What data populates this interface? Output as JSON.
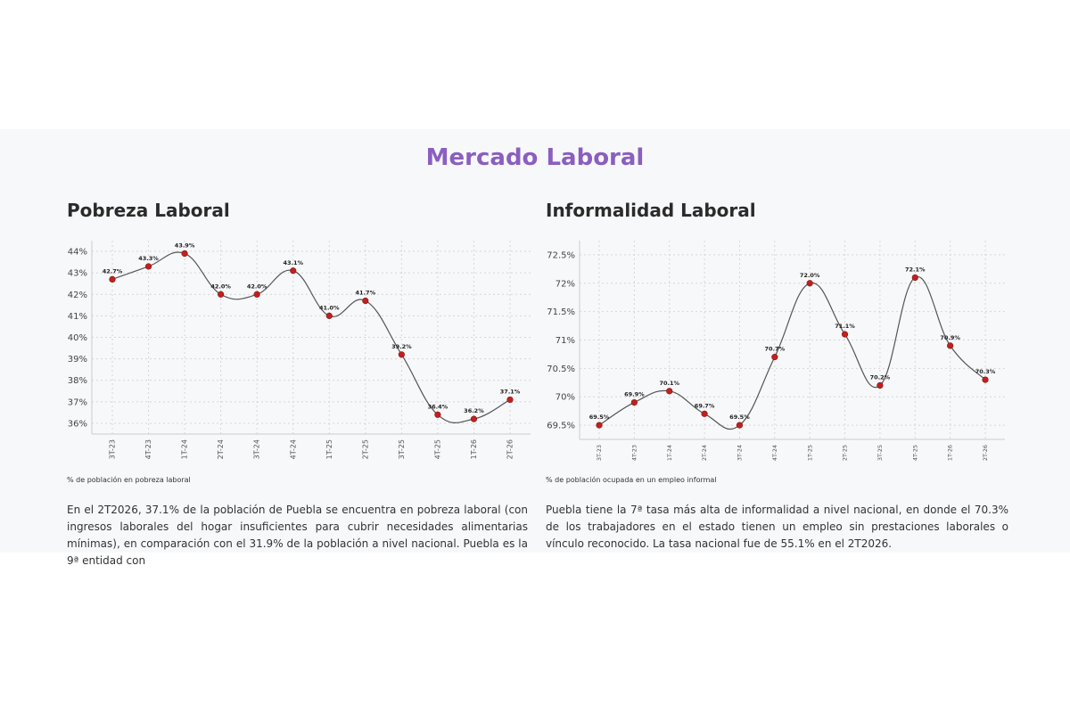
{
  "section_title": "Mercado Laboral",
  "charts": [
    {
      "title": "Pobreza Laboral",
      "caption": "% de población en pobreza laboral",
      "description": "En el 2T2026, 37.1% de la población de Puebla se encuentra en pobreza laboral (con ingresos laborales del hogar insuficientes para cubrir necesidades alimentarias mínimas), en comparación con el 31.9% de la población a nivel nacional. Puebla es la 9ª entidad con",
      "chart_data": {
        "type": "line",
        "categories": [
          "3T-23",
          "4T-23",
          "1T-24",
          "2T-24",
          "3T-24",
          "4T-24",
          "1T-25",
          "2T-25",
          "3T-25",
          "4T-25",
          "1T-26",
          "2T-26"
        ],
        "values": [
          42.7,
          43.3,
          43.9,
          42.0,
          42.0,
          43.1,
          41.0,
          41.7,
          39.2,
          36.4,
          36.2,
          37.1
        ],
        "data_labels": [
          "42.7%",
          "43.3%",
          "43.9%",
          "42.0%",
          "42.0%",
          "43.1%",
          "41.0%",
          "41.7%",
          "39.2%",
          "36.4%",
          "36.2%",
          "37.1%"
        ],
        "y_ticks": [
          36,
          37,
          38,
          39,
          40,
          41,
          42,
          43,
          44
        ],
        "y_tick_labels": [
          "36%",
          "37%",
          "38%",
          "39%",
          "40%",
          "41%",
          "42%",
          "43%",
          "44%"
        ],
        "ylim": [
          35.5,
          44.5
        ],
        "grid": true,
        "line_color": "#555555",
        "point_color": "#c0201f"
      }
    },
    {
      "title": "Informalidad Laboral",
      "caption": "% de población ocupada en un empleo informal",
      "description": "Puebla tiene la 7ª tasa más alta de informalidad a nivel nacional, en donde el 70.3% de los trabajadores en el estado tienen un empleo sin prestaciones laborales o vínculo reconocido. La tasa nacional fue de 55.1% en el 2T2026.",
      "chart_data": {
        "type": "line",
        "categories": [
          "3T-23",
          "4T-23",
          "1T-24",
          "2T-24",
          "3T-24",
          "4T-24",
          "1T-25",
          "2T-25",
          "3T-25",
          "4T-25",
          "1T-26",
          "2T-26"
        ],
        "values": [
          69.5,
          69.9,
          70.1,
          69.7,
          69.5,
          70.7,
          72.0,
          71.1,
          70.2,
          72.1,
          70.9,
          70.3
        ],
        "data_labels": [
          "69.5%",
          "69.9%",
          "70.1%",
          "69.7%",
          "69.5%",
          "70.7%",
          "72.0%",
          "71.1%",
          "70.2%",
          "72.1%",
          "70.9%",
          "70.3%"
        ],
        "y_ticks": [
          69.5,
          70,
          70.5,
          71,
          71.5,
          72,
          72.5
        ],
        "y_tick_labels": [
          "69.5%",
          "70%",
          "70.5%",
          "71%",
          "71.5%",
          "72%",
          "72.5%"
        ],
        "ylim": [
          69.25,
          72.75
        ],
        "grid": true,
        "line_color": "#555555",
        "point_color": "#c0201f"
      }
    }
  ]
}
